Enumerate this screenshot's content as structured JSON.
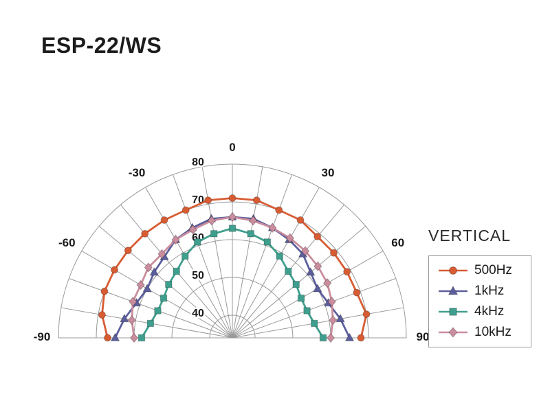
{
  "page": {
    "title": "ESP-22/WS"
  },
  "chart_data": {
    "type": "line",
    "subtype": "polar-half",
    "title": "VERTICAL",
    "legend_position": "right",
    "grid": true,
    "grid_color": "#999999",
    "text_color": "#1a1a1a",
    "angle_unit": "degrees",
    "angle_range": [
      -90,
      90
    ],
    "angle_grid_step_deg": 10,
    "angle_tick_labels": [
      -90,
      -60,
      -30,
      0,
      30,
      60,
      90
    ],
    "radial_ticks": [
      40,
      50,
      60,
      70,
      80
    ],
    "radial_range": [
      34,
      80
    ],
    "angles_deg": [
      -90,
      -80,
      -70,
      -60,
      -50,
      -40,
      -30,
      -20,
      -10,
      0,
      10,
      20,
      30,
      40,
      50,
      60,
      70,
      80,
      90
    ],
    "series": [
      {
        "name": "500Hz",
        "color": "#d85c33",
        "marker": "circle",
        "values": [
          67,
          69,
          70,
          70,
          70,
          70,
          70,
          70,
          71,
          71,
          71,
          70,
          70,
          69,
          69,
          69,
          69,
          70,
          68
        ]
      },
      {
        "name": "1kHz",
        "color": "#5c5f9c",
        "marker": "triangle",
        "values": [
          65,
          63,
          61,
          60,
          61,
          62,
          64,
          65,
          66,
          66,
          66,
          65,
          64,
          63,
          61,
          60,
          61,
          63,
          65
        ]
      },
      {
        "name": "4kHz",
        "color": "#3f9f8e",
        "marker": "square",
        "values": [
          58,
          56,
          55,
          55,
          56,
          57,
          59,
          61,
          62,
          63,
          62,
          61,
          59,
          57,
          56,
          55,
          55,
          56,
          58
        ]
      },
      {
        "name": "10kHz",
        "color": "#ca8d9d",
        "marker": "diamond",
        "values": [
          60,
          61,
          62,
          62,
          63,
          63,
          64,
          64.5,
          65.5,
          66,
          65.5,
          65,
          64.5,
          64,
          63.5,
          63,
          62,
          61,
          60
        ]
      }
    ]
  }
}
